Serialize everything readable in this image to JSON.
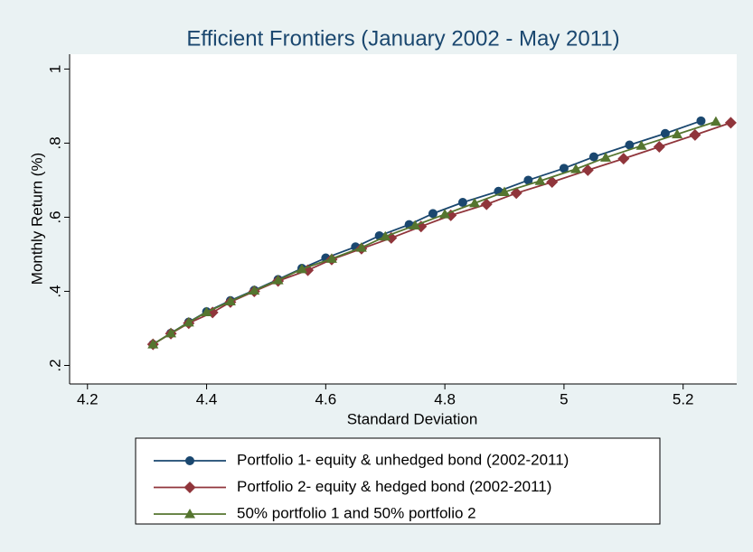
{
  "chart_data": {
    "type": "line",
    "title": "Efficient Frontiers (January 2002 - May 2011)",
    "xlabel": "Standard Deviation",
    "ylabel": "Monthly Return (%)",
    "xlim": [
      4.17,
      5.29
    ],
    "ylim": [
      0.15,
      1.04
    ],
    "xticks": [
      4.2,
      4.4,
      4.6,
      4.8,
      5,
      5.2
    ],
    "yticks": [
      {
        "value": 0.2,
        "label": ".2"
      },
      {
        "value": 0.4,
        "label": ".4"
      },
      {
        "value": 0.6,
        "label": ".6"
      },
      {
        "value": 0.8,
        "label": ".8"
      },
      1
    ],
    "grid": false,
    "legend": "bottom",
    "series": [
      {
        "name": "Portfolio 1- equity & unhedged bond (2002-2011)",
        "color": "#1a476f",
        "marker": "circle",
        "x": [
          4.31,
          4.34,
          4.37,
          4.4,
          4.44,
          4.48,
          4.52,
          4.56,
          4.6,
          4.65,
          4.69,
          4.74,
          4.78,
          4.83,
          4.89,
          4.94,
          5.0,
          5.05,
          5.11,
          5.17,
          5.23
        ],
        "values": [
          0.257,
          0.287,
          0.317,
          0.345,
          0.375,
          0.403,
          0.432,
          0.462,
          0.49,
          0.52,
          0.55,
          0.58,
          0.61,
          0.64,
          0.67,
          0.7,
          0.732,
          0.763,
          0.795,
          0.826,
          0.86
        ]
      },
      {
        "name": "Portfolio 2- equity & hedged bond (2002-2011)",
        "color": "#90353b",
        "marker": "diamond",
        "x": [
          4.31,
          4.34,
          4.37,
          4.41,
          4.44,
          4.48,
          4.52,
          4.57,
          4.61,
          4.66,
          4.71,
          4.76,
          4.81,
          4.87,
          4.92,
          4.98,
          5.04,
          5.1,
          5.16,
          5.22,
          5.28
        ],
        "values": [
          0.257,
          0.286,
          0.314,
          0.343,
          0.371,
          0.4,
          0.428,
          0.457,
          0.486,
          0.515,
          0.544,
          0.575,
          0.605,
          0.635,
          0.665,
          0.695,
          0.727,
          0.758,
          0.79,
          0.822,
          0.855
        ]
      },
      {
        "name": "50% portfolio 1 and 50% portfolio 2",
        "color": "#55752f",
        "marker": "triangle",
        "x": [
          4.31,
          4.34,
          4.37,
          4.4,
          4.44,
          4.48,
          4.52,
          4.56,
          4.61,
          4.66,
          4.7,
          4.75,
          4.8,
          4.85,
          4.9,
          4.96,
          5.02,
          5.07,
          5.13,
          5.19,
          5.255
        ],
        "values": [
          0.257,
          0.287,
          0.316,
          0.344,
          0.373,
          0.402,
          0.43,
          0.46,
          0.488,
          0.518,
          0.548,
          0.578,
          0.608,
          0.638,
          0.668,
          0.698,
          0.73,
          0.761,
          0.793,
          0.824,
          0.858
        ]
      }
    ]
  }
}
